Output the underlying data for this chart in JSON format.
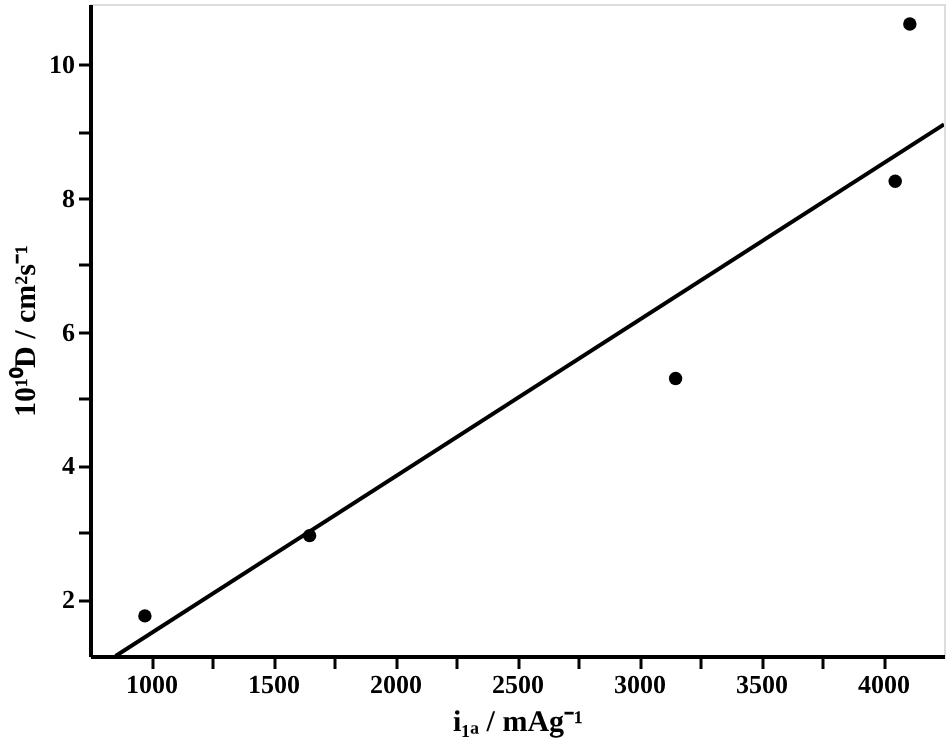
{
  "chart_data": {
    "type": "scatter",
    "xlabel": "i₁ₐ / mAg⁻¹",
    "ylabel": "10¹⁰D / cm²s⁻¹",
    "x": [
      975,
      1650,
      3150,
      4050,
      4110
    ],
    "series": [
      {
        "color": "#000000",
        "marker": "circle",
        "values": [
          1.75,
          2.95,
          5.3,
          8.25,
          10.6
        ]
      },
      {
        "type": "line",
        "color": "#000000",
        "line_style": "solid",
        "x": [
          855,
          4250
        ],
        "values": [
          1.15,
          9.1
        ]
      }
    ],
    "xlim": [
      750,
      4250
    ],
    "ylim": [
      1.15,
      10.9
    ],
    "xticks": [
      1000,
      {
        "value": 1250,
        "label": null
      },
      1500,
      {
        "value": 1750,
        "label": null
      },
      2000,
      {
        "value": 2250,
        "label": null
      },
      2500,
      {
        "value": 2750,
        "label": null
      },
      3000,
      {
        "value": 3250,
        "label": null
      },
      3500,
      {
        "value": 3750,
        "label": null
      },
      4000
    ],
    "yticks": [
      2,
      {
        "value": 3,
        "label": null
      },
      4,
      {
        "value": 5,
        "label": null
      },
      6,
      {
        "value": 7,
        "label": null
      },
      8,
      {
        "value": 9,
        "label": null
      },
      10
    ],
    "grid": false
  }
}
